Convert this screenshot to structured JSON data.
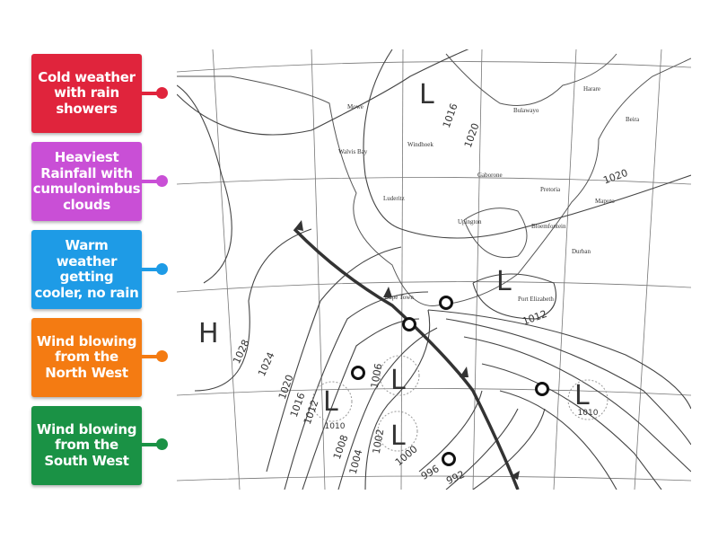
{
  "labels": [
    {
      "text": "Cold weather with rain showers",
      "color": "#e0243c"
    },
    {
      "text": "Heaviest Rainfall with cumulonimbus clouds",
      "color": "#c94fd6"
    },
    {
      "text": "Warm weather getting cooler, no rain",
      "color": "#1e9be6"
    },
    {
      "text": "Wind blowing from the North West",
      "color": "#f47b12"
    },
    {
      "text": "Wind blowing from the South West",
      "color": "#1a9245"
    }
  ],
  "map": {
    "places": [
      "Mowe",
      "Walvis Bay",
      "Windhoek",
      "Luderitz",
      "Upington",
      "Gaborone",
      "Pretoria",
      "Bloemfontein",
      "Durban",
      "Maputo",
      "Harare",
      "Beira",
      "Bulawayo",
      "Cape Town",
      "Port Elizabeth"
    ],
    "pressure_labels": [
      "L",
      "L",
      "L",
      "L",
      "L",
      "L",
      "H"
    ],
    "isobars": [
      "1016",
      "1020",
      "1020",
      "1012",
      "1028",
      "1024",
      "1020",
      "1016",
      "1012",
      "1010",
      "1006",
      "1008",
      "1004",
      "1002",
      "1000",
      "996",
      "992",
      "1010"
    ]
  }
}
